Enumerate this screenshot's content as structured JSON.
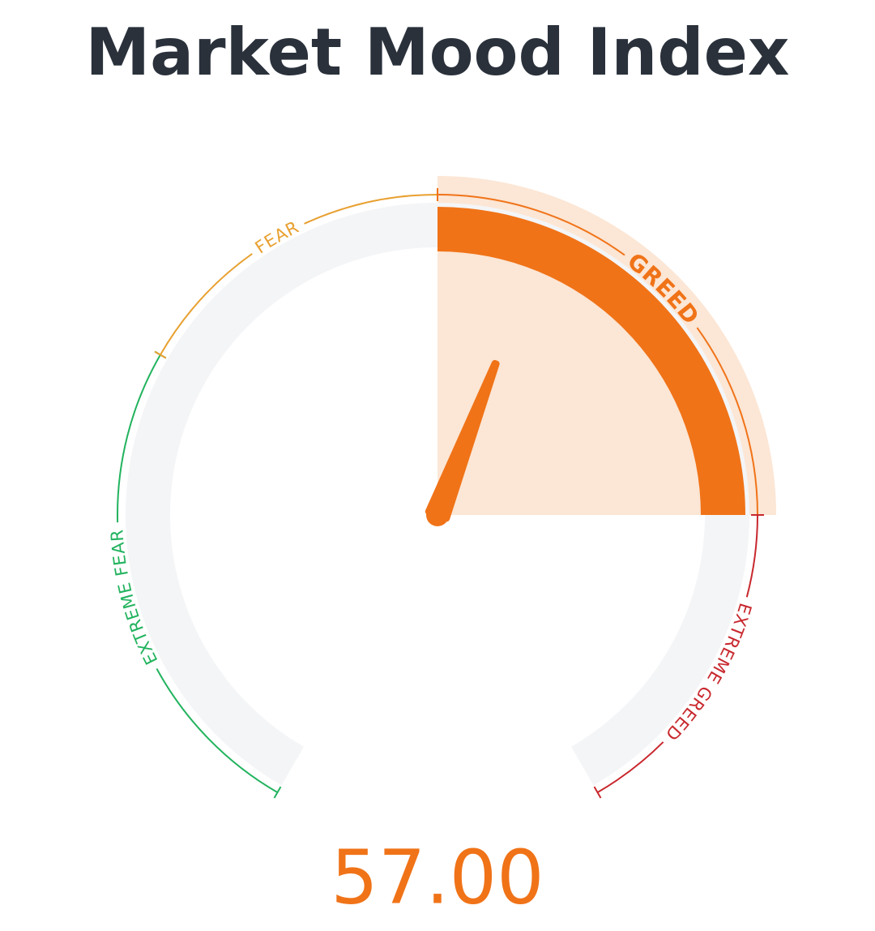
{
  "chart_data": {
    "type": "gauge",
    "title": "Market Mood Index",
    "value": 57,
    "value_label": "57.00",
    "ylim": [
      0,
      100
    ],
    "zones": [
      {
        "label": "EXTREME FEAR",
        "from": 0,
        "to": 30,
        "color": "#22b35e"
      },
      {
        "label": "FEAR",
        "from": 30,
        "to": 50,
        "color": "#e8a030"
      },
      {
        "label": "GREED",
        "from": 50,
        "to": 80,
        "color": "#f07318"
      },
      {
        "label": "EXTREME GREED",
        "from": 80,
        "to": 100,
        "color": "#c8282e"
      }
    ]
  }
}
